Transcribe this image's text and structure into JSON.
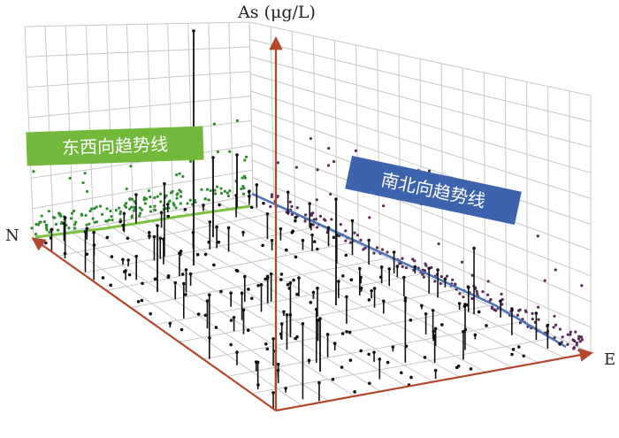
{
  "chart_data": {
    "type": "scatter",
    "subtype": "3d-trend-analysis",
    "z_axis_label": "As (μg/L)",
    "x_axis_direction_label": "E",
    "y_axis_direction_label": "N",
    "grid": true,
    "ew_trend_label": "东西向趋势线",
    "ns_trend_label": "南北向趋势线",
    "colors": {
      "grid": "#c8c8c8",
      "axis": "#b5472e",
      "points": "#111111",
      "ew_projection": "#2e8b2e",
      "ew_trendline": "#7cc242",
      "ns_projection": "#5a2a5a",
      "ns_trendline": "#4a74b8",
      "ew_box": "#72b83a",
      "ns_box": "#3d63ad"
    }
  }
}
